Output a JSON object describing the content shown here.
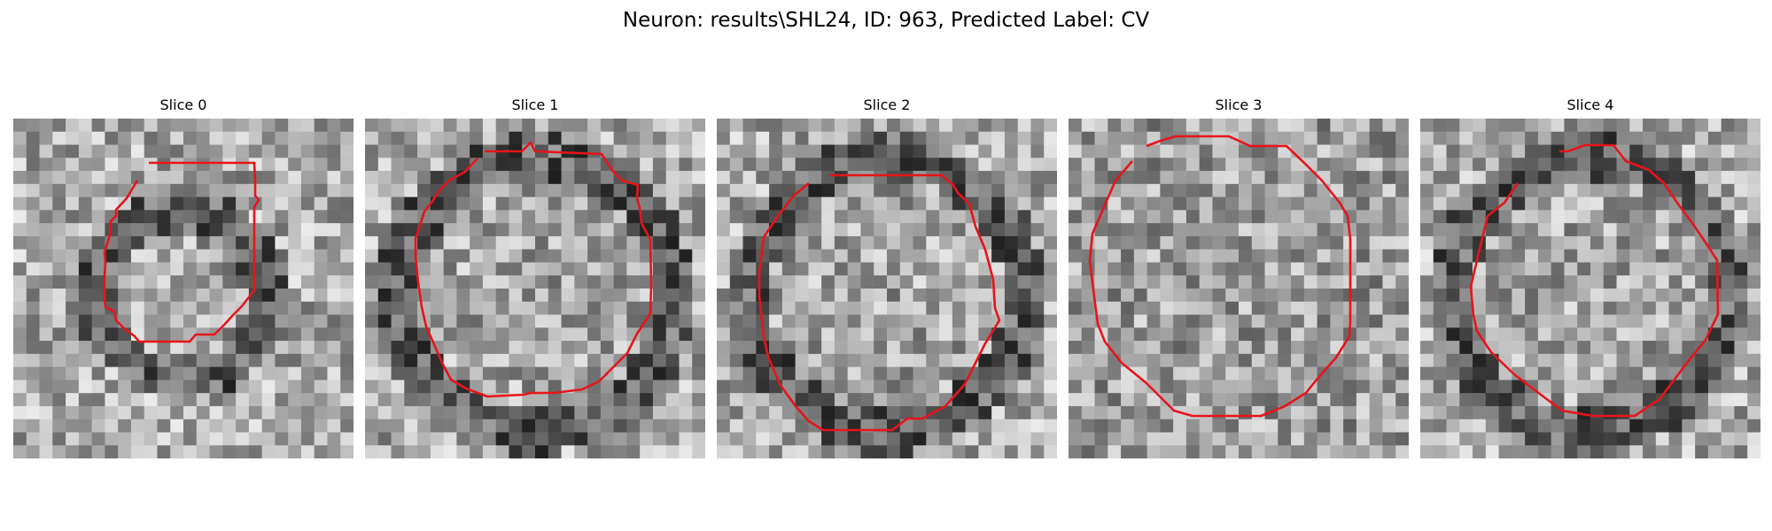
{
  "figure": {
    "title": "Neuron: results\\SHL24, ID: 963, Predicted Label: CV",
    "contour_color": "#e8141a"
  },
  "slices": [
    {
      "title": "Slice 0",
      "seed": 11,
      "dark_ring": true
    },
    {
      "title": "Slice 1",
      "seed": 23,
      "dark_ring": true
    },
    {
      "title": "Slice 2",
      "seed": 37,
      "dark_ring": true
    },
    {
      "title": "Slice 3",
      "seed": 41,
      "dark_ring": false
    },
    {
      "title": "Slice 4",
      "seed": 53,
      "dark_ring": true
    }
  ]
}
